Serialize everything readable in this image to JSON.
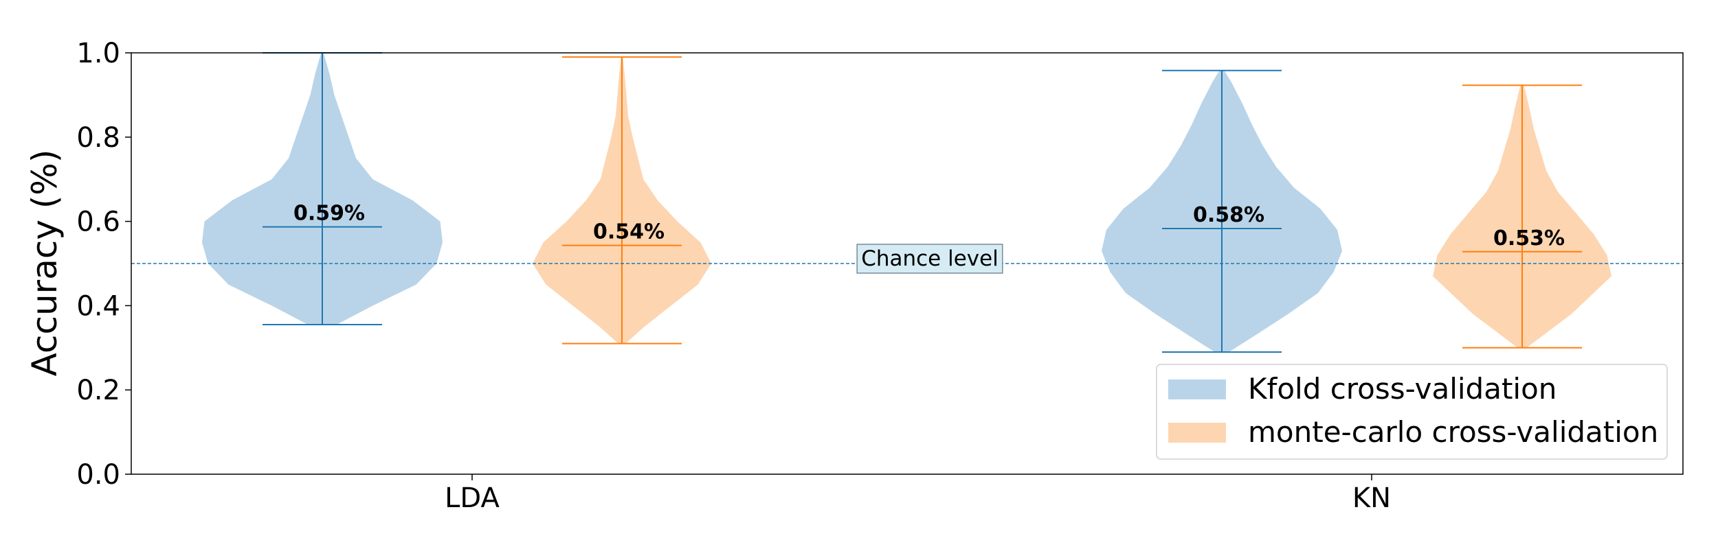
{
  "chart_data": {
    "type": "violin",
    "ylabel": "Accuracy (%)",
    "xlabel": "",
    "ylim": [
      0.0,
      1.0
    ],
    "yticks": [
      "0.0",
      "0.2",
      "0.4",
      "0.6",
      "0.8",
      "1.0"
    ],
    "categories": [
      "LDA",
      "KN"
    ],
    "grid": false,
    "legend_position": "bottom-right",
    "chance_level": {
      "value": 0.5,
      "label": "Chance level"
    },
    "series": [
      {
        "name": "Kfold cross-validation",
        "color": "#1f77b4",
        "fill": "#b9d4e8",
        "violins": [
          {
            "category": "LDA",
            "min": 0.355,
            "max": 1.0,
            "mean": 0.587,
            "mean_label": "0.59%",
            "profile": [
              [
                0.355,
                0.12
              ],
              [
                0.4,
                0.42
              ],
              [
                0.45,
                0.78
              ],
              [
                0.5,
                0.95
              ],
              [
                0.55,
                1.0
              ],
              [
                0.6,
                0.98
              ],
              [
                0.65,
                0.75
              ],
              [
                0.7,
                0.42
              ],
              [
                0.75,
                0.28
              ],
              [
                0.8,
                0.22
              ],
              [
                0.85,
                0.16
              ],
              [
                0.9,
                0.1
              ],
              [
                0.95,
                0.06
              ],
              [
                0.98,
                0.03
              ],
              [
                1.0,
                0.01
              ]
            ]
          },
          {
            "category": "KN",
            "min": 0.29,
            "max": 0.958,
            "mean": 0.583,
            "mean_label": "0.58%",
            "profile": [
              [
                0.29,
                0.06
              ],
              [
                0.33,
                0.28
              ],
              [
                0.38,
                0.55
              ],
              [
                0.43,
                0.8
              ],
              [
                0.48,
                0.93
              ],
              [
                0.53,
                1.0
              ],
              [
                0.58,
                0.96
              ],
              [
                0.63,
                0.82
              ],
              [
                0.68,
                0.6
              ],
              [
                0.73,
                0.45
              ],
              [
                0.78,
                0.34
              ],
              [
                0.83,
                0.25
              ],
              [
                0.88,
                0.17
              ],
              [
                0.93,
                0.08
              ],
              [
                0.958,
                0.02
              ]
            ]
          }
        ]
      },
      {
        "name": "monte-carlo cross-validation",
        "color": "#ff7f0e",
        "fill": "#fdd5b0",
        "violins": [
          {
            "category": "LDA",
            "min": 0.31,
            "max": 0.99,
            "mean": 0.543,
            "mean_label": "0.54%",
            "profile": [
              [
                0.31,
                0.04
              ],
              [
                0.35,
                0.25
              ],
              [
                0.4,
                0.55
              ],
              [
                0.45,
                0.85
              ],
              [
                0.5,
                1.0
              ],
              [
                0.55,
                0.88
              ],
              [
                0.6,
                0.62
              ],
              [
                0.65,
                0.4
              ],
              [
                0.7,
                0.24
              ],
              [
                0.75,
                0.18
              ],
              [
                0.8,
                0.12
              ],
              [
                0.85,
                0.07
              ],
              [
                0.9,
                0.05
              ],
              [
                0.95,
                0.03
              ],
              [
                0.99,
                0.01
              ]
            ]
          },
          {
            "category": "KN",
            "min": 0.3,
            "max": 0.923,
            "mean": 0.528,
            "mean_label": "0.53%",
            "profile": [
              [
                0.3,
                0.05
              ],
              [
                0.34,
                0.3
              ],
              [
                0.38,
                0.55
              ],
              [
                0.43,
                0.8
              ],
              [
                0.47,
                1.0
              ],
              [
                0.52,
                0.95
              ],
              [
                0.57,
                0.8
              ],
              [
                0.62,
                0.6
              ],
              [
                0.67,
                0.4
              ],
              [
                0.72,
                0.27
              ],
              [
                0.77,
                0.2
              ],
              [
                0.82,
                0.13
              ],
              [
                0.87,
                0.08
              ],
              [
                0.923,
                0.02
              ]
            ]
          }
        ]
      }
    ]
  }
}
